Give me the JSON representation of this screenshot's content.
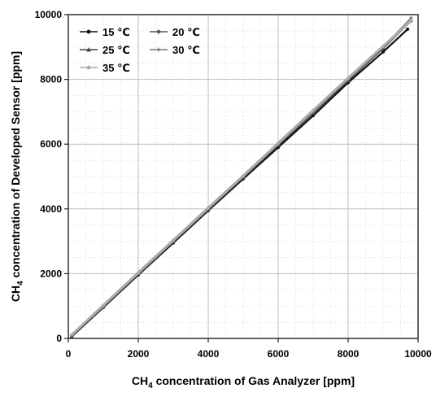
{
  "chart_data": {
    "type": "line",
    "title": "",
    "xlabel": {
      "prefix": "CH",
      "sub": "4",
      "suffix": " concentration of Gas Analyzer  [ppm]"
    },
    "ylabel": {
      "prefix": "CH",
      "sub": "4",
      "suffix": " concentration of Developed Sensor  [ppm]"
    },
    "xlim": [
      0,
      10000
    ],
    "ylim": [
      0,
      10000
    ],
    "xticks": [
      0,
      2000,
      4000,
      6000,
      8000,
      10000
    ],
    "yticks": [
      0,
      2000,
      4000,
      6000,
      8000,
      10000
    ],
    "xtick_labels": [
      "0",
      "2000",
      "4000",
      "6000",
      "8000",
      "10000"
    ],
    "ytick_labels": [
      "0",
      "2000",
      "4000",
      "6000",
      "8000",
      "10000"
    ],
    "grid": {
      "major": true,
      "minor": true
    },
    "legend_position": "top-left",
    "series": [
      {
        "name": "15 ℃",
        "color": "#111111",
        "marker": "circle",
        "x": [
          100,
          1000,
          2000,
          3000,
          4000,
          5000,
          6000,
          7000,
          8000,
          9000,
          9700
        ],
        "y": [
          60,
          960,
          1960,
          2950,
          3950,
          4930,
          5900,
          6880,
          7900,
          8850,
          9550
        ]
      },
      {
        "name": "20 ℃",
        "color": "#555555",
        "marker": "diamond",
        "x": [
          100,
          1000,
          2000,
          3000,
          4000,
          5000,
          6000,
          7000,
          8000,
          9000,
          9800
        ],
        "y": [
          90,
          990,
          1990,
          2990,
          3990,
          4980,
          5970,
          6960,
          7970,
          8950,
          9800
        ]
      },
      {
        "name": "25 ℃",
        "color": "#444444",
        "marker": "triangle",
        "x": [
          100,
          1000,
          2000,
          3000,
          4000,
          5000,
          6000,
          7000,
          8000,
          9000,
          9800
        ],
        "y": [
          80,
          980,
          1980,
          2980,
          3980,
          4970,
          5960,
          6960,
          7960,
          8960,
          9850
        ]
      },
      {
        "name": "30 ℃",
        "color": "#777777",
        "marker": "plus",
        "x": [
          100,
          1000,
          2000,
          3000,
          4000,
          5000,
          6000,
          7000,
          8000,
          9000,
          9800
        ],
        "y": [
          100,
          1000,
          2000,
          3000,
          4000,
          5000,
          6000,
          7000,
          8000,
          9000,
          9900
        ]
      },
      {
        "name": "35 ℃",
        "color": "#aaaaaa",
        "marker": "circle",
        "x": [
          100,
          1000,
          2000,
          3000,
          4000,
          5000,
          6000,
          7000,
          8000,
          9000,
          9800
        ],
        "y": [
          110,
          1020,
          2030,
          3030,
          4030,
          5020,
          6030,
          7040,
          8040,
          9020,
          9820
        ]
      }
    ]
  }
}
